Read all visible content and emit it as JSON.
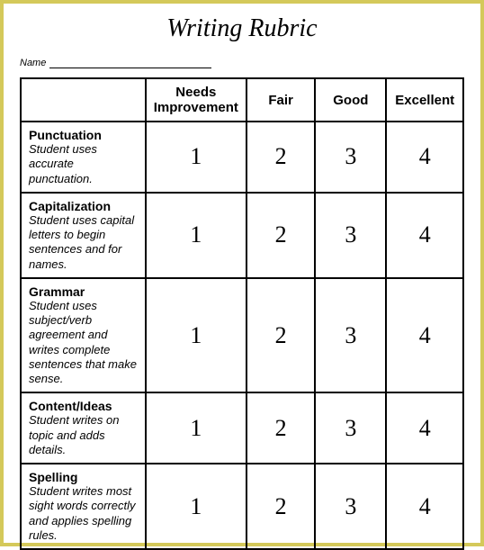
{
  "title": "Writing Rubric",
  "name_label": "Name",
  "columns": [
    "",
    "Needs Improvement",
    "Fair",
    "Good",
    "Excellent"
  ],
  "rows": [
    {
      "label": "Punctuation",
      "desc": "Student uses accurate punctuation.",
      "scores": [
        "1",
        "2",
        "3",
        "4"
      ]
    },
    {
      "label": "Capitalization",
      "desc": "Student uses capital letters to begin sentences and for names.",
      "scores": [
        "1",
        "2",
        "3",
        "4"
      ]
    },
    {
      "label": "Grammar",
      "desc": "Student uses subject/verb agreement and writes complete sentences that make sense.",
      "scores": [
        "1",
        "2",
        "3",
        "4"
      ]
    },
    {
      "label": "Content/Ideas",
      "desc": "Student writes on topic and adds details.",
      "scores": [
        "1",
        "2",
        "3",
        "4"
      ]
    },
    {
      "label": "Spelling",
      "desc": "Student writes most sight words correctly and applies spelling rules.",
      "scores": [
        "1",
        "2",
        "3",
        "4"
      ]
    }
  ],
  "style": {
    "border_color": "#d4c95a",
    "table_border_color": "#000000",
    "background_color": "#ffffff",
    "title_fontsize": 28,
    "header_fontsize": 15,
    "label_fontsize": 14,
    "desc_fontsize": 13,
    "score_fontsize": 26,
    "first_col_width_pct": 30,
    "score_col_width_pct": 17.5
  }
}
